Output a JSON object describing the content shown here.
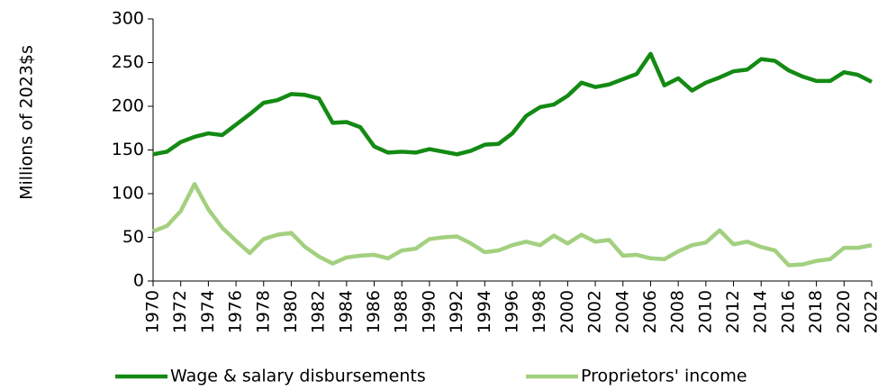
{
  "chart_data": {
    "type": "line",
    "y_label": "Millions of 2023$s",
    "x": [
      1970,
      1971,
      1972,
      1973,
      1974,
      1975,
      1976,
      1977,
      1978,
      1979,
      1980,
      1981,
      1982,
      1983,
      1984,
      1985,
      1986,
      1987,
      1988,
      1989,
      1990,
      1991,
      1992,
      1993,
      1994,
      1995,
      1996,
      1997,
      1998,
      1999,
      2000,
      2001,
      2002,
      2003,
      2004,
      2005,
      2006,
      2007,
      2008,
      2009,
      2010,
      2011,
      2012,
      2013,
      2014,
      2015,
      2016,
      2017,
      2018,
      2019,
      2020,
      2021,
      2022
    ],
    "series": [
      {
        "name": "Wage & salary disbursements",
        "color": "#138a13",
        "values": [
          145,
          148,
          159,
          165,
          169,
          167,
          179,
          191,
          204,
          207,
          214,
          213,
          209,
          181,
          182,
          176,
          154,
          147,
          148,
          147,
          151,
          148,
          145,
          149,
          156,
          157,
          169,
          189,
          199,
          202,
          212,
          227,
          222,
          225,
          231,
          237,
          260,
          224,
          232,
          218,
          227,
          233,
          240,
          242,
          254,
          252,
          241,
          234,
          229,
          229,
          239,
          236,
          228
        ]
      },
      {
        "name": "Proprietors' income",
        "color": "#a3d07f",
        "values": [
          57,
          63,
          80,
          111,
          82,
          61,
          46,
          32,
          48,
          53,
          55,
          39,
          28,
          20,
          27,
          29,
          30,
          26,
          35,
          37,
          48,
          50,
          51,
          43,
          33,
          35,
          41,
          45,
          41,
          52,
          43,
          53,
          45,
          47,
          29,
          30,
          26,
          25,
          34,
          41,
          44,
          58,
          42,
          45,
          39,
          35,
          18,
          19,
          23,
          25,
          38,
          38,
          41
        ]
      }
    ],
    "xlim": [
      1970,
      2022
    ],
    "xticks": [
      1970,
      1972,
      1974,
      1976,
      1978,
      1980,
      1982,
      1984,
      1986,
      1988,
      1990,
      1992,
      1994,
      1996,
      1998,
      2000,
      2002,
      2004,
      2006,
      2008,
      2010,
      2012,
      2014,
      2016,
      2018,
      2020,
      2022
    ],
    "ylim": [
      0,
      300
    ],
    "yticks": [
      0,
      50,
      100,
      150,
      200,
      250,
      300
    ],
    "grid": false,
    "legend": "bottom"
  }
}
